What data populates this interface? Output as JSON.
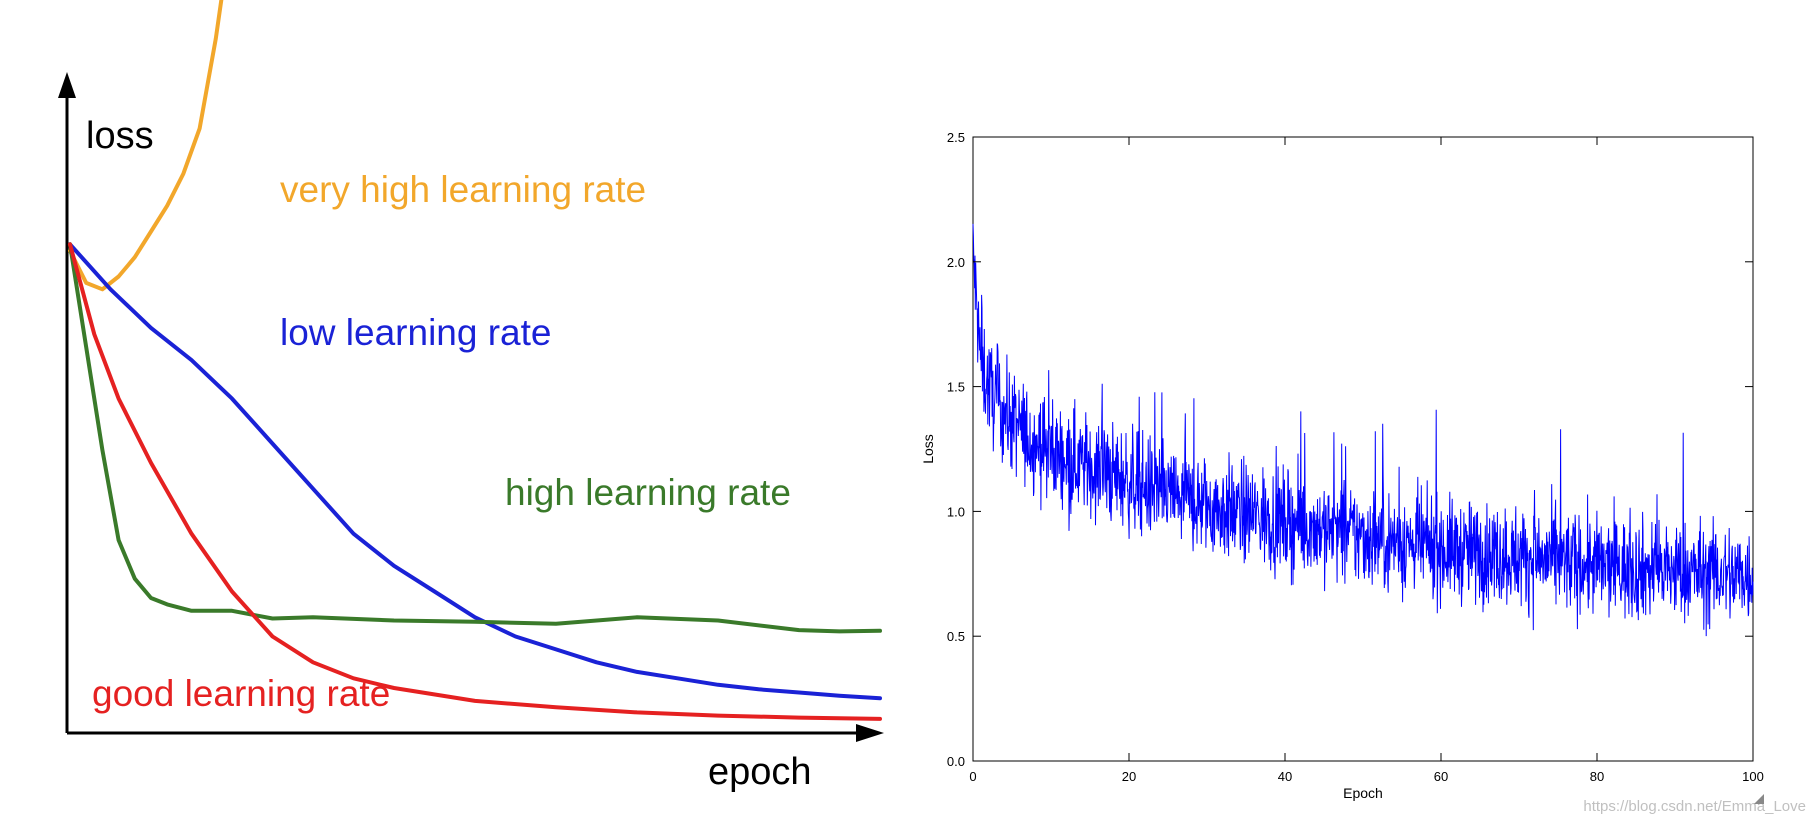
{
  "watermark": "https://blog.csdn.net/Emma_Love",
  "chart_data": [
    {
      "type": "line",
      "axis_labels": {
        "y": "loss",
        "x": "epoch"
      },
      "ticks": "none",
      "series": [
        {
          "name": "very high learning rate",
          "color": "#f2a72b",
          "x": [
            0,
            2,
            4,
            6,
            8,
            10,
            12,
            14,
            16,
            18,
            19.7
          ],
          "y": [
            0.75,
            0.7,
            0.69,
            0.71,
            0.74,
            0.78,
            0.82,
            0.87,
            0.94,
            1.08,
            1.23
          ]
        },
        {
          "name": "low learning rate",
          "color": "#1a22d6",
          "x": [
            0,
            5,
            10,
            15,
            20,
            25,
            30,
            35,
            40,
            45,
            50,
            55,
            60,
            65,
            70,
            75,
            80,
            85,
            90,
            95,
            100
          ],
          "y": [
            0.76,
            0.69,
            0.63,
            0.58,
            0.52,
            0.45,
            0.38,
            0.31,
            0.26,
            0.22,
            0.18,
            0.15,
            0.13,
            0.11,
            0.095,
            0.085,
            0.075,
            0.068,
            0.063,
            0.058,
            0.054
          ]
        },
        {
          "name": "high learning rate",
          "color": "#3a7a2a",
          "x": [
            0,
            2,
            4,
            6,
            8,
            10,
            12,
            15,
            20,
            25,
            30,
            40,
            50,
            60,
            70,
            80,
            90,
            95,
            100
          ],
          "y": [
            0.76,
            0.6,
            0.44,
            0.3,
            0.24,
            0.21,
            0.2,
            0.19,
            0.19,
            0.178,
            0.18,
            0.175,
            0.173,
            0.17,
            0.18,
            0.175,
            0.16,
            0.158,
            0.159
          ]
        },
        {
          "name": "good learning rate",
          "color": "#e52121",
          "x": [
            0,
            3,
            6,
            10,
            15,
            20,
            25,
            30,
            35,
            40,
            50,
            60,
            70,
            80,
            90,
            100
          ],
          "y": [
            0.76,
            0.62,
            0.52,
            0.42,
            0.31,
            0.22,
            0.15,
            0.11,
            0.085,
            0.07,
            0.05,
            0.04,
            0.032,
            0.027,
            0.024,
            0.022
          ]
        }
      ]
    },
    {
      "type": "line",
      "xlabel": "Epoch",
      "ylabel": "Loss",
      "xlim": [
        0,
        100
      ],
      "ylim": [
        0.0,
        2.5
      ],
      "xticks": [
        "0",
        "20",
        "40",
        "60",
        "80",
        "100"
      ],
      "yticks": [
        "0.0",
        "0.5",
        "1.0",
        "1.5",
        "2.0",
        "2.5"
      ],
      "line_color": "#0000ff",
      "trend": {
        "x": [
          0,
          0.5,
          1,
          2,
          3,
          5,
          7,
          10,
          15,
          20,
          25,
          30,
          40,
          50,
          60,
          70,
          80,
          90,
          100
        ],
        "y": [
          2.05,
          1.8,
          1.6,
          1.5,
          1.44,
          1.36,
          1.3,
          1.24,
          1.18,
          1.12,
          1.07,
          1.02,
          0.96,
          0.9,
          0.85,
          0.82,
          0.78,
          0.76,
          0.74
        ]
      },
      "noise_amplitude": 0.1,
      "num_points": 2000
    }
  ]
}
